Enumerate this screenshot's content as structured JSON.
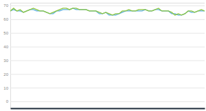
{
  "chart_data": {
    "type": "line",
    "categories": [
      null,
      null,
      null,
      null,
      null,
      null,
      null,
      null,
      null,
      null,
      null,
      null,
      null,
      null,
      null,
      null,
      null,
      null,
      null,
      null,
      null,
      null,
      null,
      null,
      null,
      null,
      null,
      null,
      null,
      null,
      null,
      null,
      null,
      null,
      null,
      null,
      null,
      null,
      null,
      null,
      null,
      null,
      null,
      null,
      null,
      null,
      null,
      null,
      null,
      null,
      null,
      null,
      null,
      null,
      null,
      null,
      null,
      null,
      null,
      null
    ],
    "series": [
      {
        "color": "#5aaee0",
        "values": [
          66,
          67,
          66,
          66,
          65,
          66,
          67,
          67,
          66,
          66,
          66,
          65,
          64,
          64,
          66,
          66,
          67,
          67,
          67,
          68,
          67,
          67,
          67,
          67,
          66,
          66,
          66,
          64,
          64,
          65,
          63,
          63,
          63,
          64,
          65,
          66,
          66,
          66,
          66,
          66,
          66,
          67,
          66,
          66,
          67,
          67,
          66,
          66,
          66,
          64,
          64,
          63,
          63,
          64,
          66,
          65,
          65,
          66,
          66,
          66
        ]
      },
      {
        "color": "#8dc63f",
        "values": [
          66,
          68,
          66,
          67,
          65,
          66,
          67,
          68,
          67,
          66,
          66,
          65,
          64,
          65,
          66,
          67,
          68,
          68,
          67,
          68,
          68,
          67,
          67,
          67,
          66,
          66,
          66,
          65,
          64,
          65,
          64,
          63,
          64,
          64,
          66,
          66,
          67,
          66,
          66,
          67,
          67,
          67,
          66,
          66,
          67,
          68,
          66,
          66,
          66,
          65,
          63,
          64,
          63,
          64,
          66,
          66,
          65,
          66,
          67,
          66
        ]
      }
    ],
    "ylim": [
      -5,
      72
    ],
    "yticks": [
      0,
      10,
      20,
      30,
      40,
      50,
      60,
      70
    ],
    "grid": true,
    "tick_labels": "y"
  }
}
